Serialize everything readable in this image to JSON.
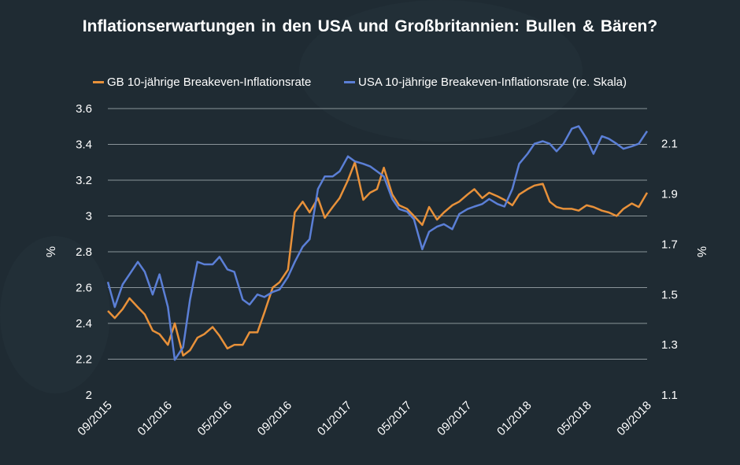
{
  "chart_data": {
    "type": "line",
    "title": "Inflationserwartungen  in den USA und Großbritannien:  Bullen & Bären?",
    "ylabel": "%",
    "ylabel_right": "%",
    "ylim": [
      2,
      3.6
    ],
    "ylim_right": [
      1.1,
      2.24
    ],
    "yticks": [
      "2",
      "2.2",
      "2.4",
      "2.6",
      "2.8",
      "3",
      "3.2",
      "3.4",
      "3.6"
    ],
    "yticks_right": [
      "1.1",
      "1.3",
      "1.5",
      "1.7",
      "1.9",
      "2.1"
    ],
    "xticks": [
      "09/2015",
      "01/2016",
      "05/2016",
      "09/2016",
      "01/2017",
      "05/2017",
      "09/2017",
      "01/2018",
      "05/2018",
      "09/2018"
    ],
    "grid": "horizontal",
    "legend_position": "top",
    "background": "#1f2b33",
    "x": [
      "2015-09-01",
      "2015-09-15",
      "2015-10-01",
      "2015-10-15",
      "2015-11-01",
      "2015-11-15",
      "2015-12-01",
      "2015-12-15",
      "2016-01-01",
      "2016-01-15",
      "2016-02-01",
      "2016-02-15",
      "2016-03-01",
      "2016-03-15",
      "2016-04-01",
      "2016-04-15",
      "2016-05-01",
      "2016-05-15",
      "2016-06-01",
      "2016-06-15",
      "2016-07-01",
      "2016-07-15",
      "2016-08-01",
      "2016-08-15",
      "2016-09-01",
      "2016-09-15",
      "2016-10-01",
      "2016-10-15",
      "2016-11-01",
      "2016-11-15",
      "2016-12-01",
      "2016-12-15",
      "2017-01-01",
      "2017-01-15",
      "2017-02-01",
      "2017-02-15",
      "2017-03-01",
      "2017-03-15",
      "2017-04-01",
      "2017-04-15",
      "2017-05-01",
      "2017-05-15",
      "2017-06-01",
      "2017-06-15",
      "2017-07-01",
      "2017-07-15",
      "2017-08-01",
      "2017-08-15",
      "2017-09-01",
      "2017-09-15",
      "2017-10-01",
      "2017-10-15",
      "2017-11-01",
      "2017-11-15",
      "2017-12-01",
      "2017-12-15",
      "2018-01-01",
      "2018-01-15",
      "2018-02-01",
      "2018-02-15",
      "2018-03-01",
      "2018-03-15",
      "2018-04-01",
      "2018-04-15",
      "2018-05-01",
      "2018-05-15",
      "2018-06-01",
      "2018-06-15",
      "2018-07-01",
      "2018-07-15",
      "2018-08-01",
      "2018-08-15",
      "2018-09-01"
    ],
    "series": [
      {
        "name": "GB 10-jährige Breakeven-Inflationsrate",
        "color": "#e8913a",
        "axis": "left",
        "values": [
          2.47,
          2.43,
          2.48,
          2.54,
          2.49,
          2.45,
          2.36,
          2.34,
          2.28,
          2.4,
          2.22,
          2.25,
          2.32,
          2.34,
          2.38,
          2.33,
          2.26,
          2.28,
          2.28,
          2.35,
          2.35,
          2.46,
          2.6,
          2.63,
          2.7,
          3.02,
          3.08,
          3.02,
          3.1,
          2.99,
          3.05,
          3.1,
          3.2,
          3.3,
          3.09,
          3.13,
          3.15,
          3.27,
          3.12,
          3.06,
          3.04,
          3.0,
          2.95,
          3.05,
          2.98,
          3.02,
          3.06,
          3.08,
          3.12,
          3.15,
          3.1,
          3.13,
          3.11,
          3.09,
          3.06,
          3.12,
          3.15,
          3.17,
          3.18,
          3.08,
          3.05,
          3.04,
          3.04,
          3.03,
          3.06,
          3.05,
          3.03,
          3.02,
          3.0,
          3.04,
          3.07,
          3.05,
          3.13
        ]
      },
      {
        "name": "USA 10-jährige Breakeven-Inflationsrate (re. Skala)",
        "color": "#5b7fd6",
        "axis": "right",
        "values": [
          1.55,
          1.45,
          1.54,
          1.58,
          1.63,
          1.59,
          1.5,
          1.58,
          1.45,
          1.24,
          1.29,
          1.48,
          1.63,
          1.62,
          1.62,
          1.65,
          1.6,
          1.59,
          1.48,
          1.46,
          1.5,
          1.49,
          1.51,
          1.52,
          1.57,
          1.63,
          1.69,
          1.72,
          1.92,
          1.97,
          1.97,
          1.99,
          2.05,
          2.03,
          2.02,
          2.01,
          1.99,
          1.97,
          1.88,
          1.84,
          1.83,
          1.8,
          1.68,
          1.75,
          1.77,
          1.78,
          1.76,
          1.82,
          1.84,
          1.85,
          1.86,
          1.88,
          1.86,
          1.85,
          1.92,
          2.02,
          2.06,
          2.1,
          2.11,
          2.1,
          2.07,
          2.1,
          2.16,
          2.17,
          2.12,
          2.06,
          2.13,
          2.12,
          2.1,
          2.08,
          2.09,
          2.1,
          2.15
        ]
      }
    ]
  }
}
